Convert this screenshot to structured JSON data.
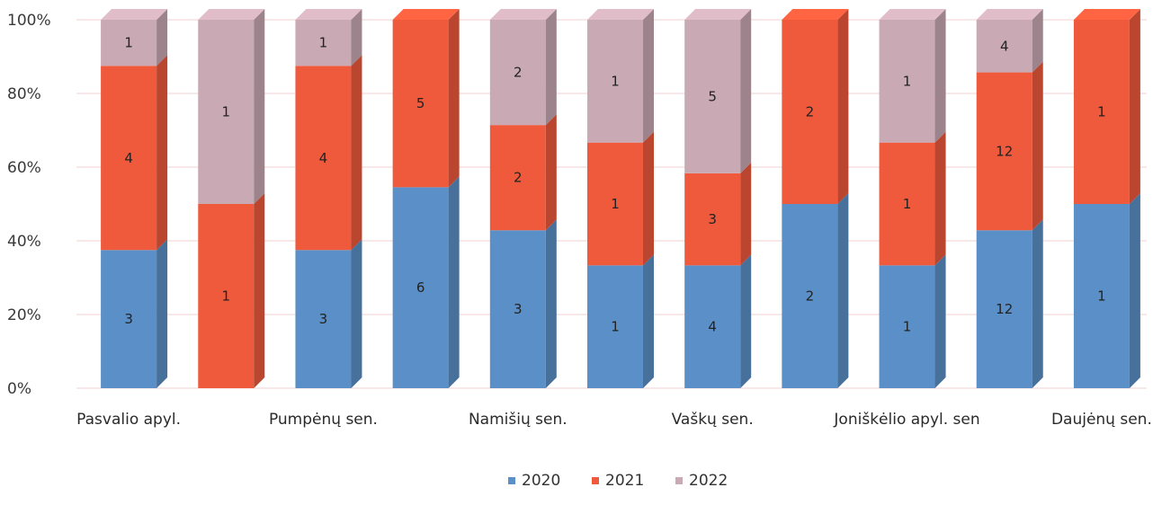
{
  "chart_data": {
    "type": "bar",
    "stacked": "percent",
    "categories": [
      "Pasvalio apyl.",
      "",
      "Pumpėnų sen.",
      "",
      "Namišių sen.",
      "",
      "Vaškų sen.",
      "",
      "Joniškėlio apyl. sen",
      "",
      "Daujėnų sen."
    ],
    "series": [
      {
        "name": "2020",
        "color": "#5b8fc7",
        "values": [
          3,
          0,
          3,
          6,
          3,
          1,
          4,
          2,
          1,
          12,
          1
        ]
      },
      {
        "name": "2021",
        "color": "#ef5a3c",
        "values": [
          4,
          1,
          4,
          5,
          2,
          1,
          3,
          2,
          1,
          12,
          1
        ]
      },
      {
        "name": "2022",
        "color": "#c9a9b4",
        "values": [
          1,
          1,
          1,
          0,
          2,
          1,
          5,
          0,
          1,
          4,
          0
        ]
      }
    ],
    "y_ticks": [
      "0%",
      "20%",
      "40%",
      "60%",
      "80%",
      "100%"
    ],
    "ylim": [
      0,
      100
    ],
    "grid": true,
    "legend_position": "bottom",
    "title": "",
    "xlabel": "",
    "ylabel": ""
  }
}
